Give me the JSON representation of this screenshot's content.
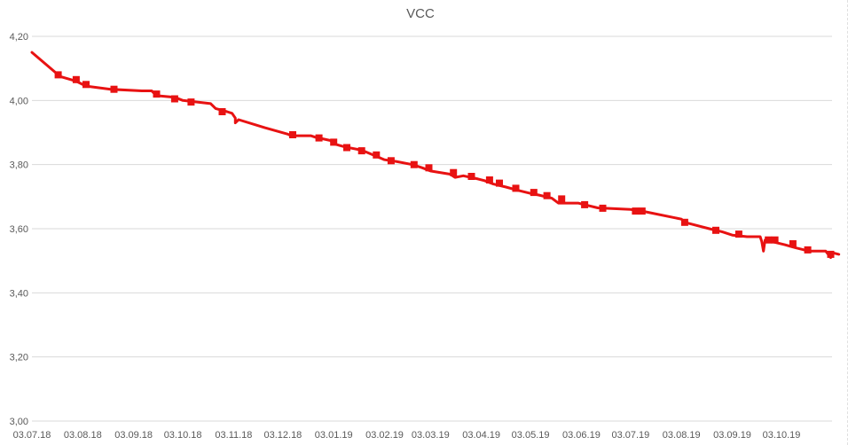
{
  "chart_data": {
    "type": "line",
    "title": "VCC",
    "xlabel": "",
    "ylabel": "",
    "ylim": [
      3.0,
      4.2
    ],
    "yticks": [
      3.0,
      3.2,
      3.4,
      3.6,
      3.8,
      4.0,
      4.2
    ],
    "ytick_labels": [
      "3,00",
      "3,20",
      "3,40",
      "3,60",
      "3,80",
      "4,00",
      "4,20"
    ],
    "xlim": [
      "2018-07-03",
      "2019-11-07"
    ],
    "xticks": [
      "2018-07-03",
      "2018-08-03",
      "2018-09-03",
      "2018-10-03",
      "2018-11-03",
      "2018-12-03",
      "2019-01-03",
      "2019-02-03",
      "2019-03-03",
      "2019-04-03",
      "2019-05-03",
      "2019-06-03",
      "2019-07-03",
      "2019-08-03",
      "2019-09-03",
      "2019-10-03"
    ],
    "xtick_labels": [
      "03.07.18",
      "03.08.18",
      "03.09.18",
      "03.10.18",
      "03.11.18",
      "03.12.18",
      "03.01.19",
      "03.02.19",
      "03.03.19",
      "03.04.19",
      "03.05.19",
      "03.06.19",
      "03.07.19",
      "03.08.19",
      "03.09.19",
      "03.10.19"
    ],
    "grid": true,
    "legend": "none",
    "series": [
      {
        "color": "#e81212",
        "points": [
          [
            "2018-07-03",
            4.15
          ],
          [
            "2018-07-19",
            4.08
          ],
          [
            "2018-07-20",
            4.075
          ],
          [
            "2018-07-30",
            4.06
          ],
          [
            "2018-08-05",
            4.045
          ],
          [
            "2018-08-20",
            4.035
          ],
          [
            "2018-09-08",
            4.03
          ],
          [
            "2018-09-14",
            4.03
          ],
          [
            "2018-09-17",
            4.015
          ],
          [
            "2018-09-28",
            4.01
          ],
          [
            "2018-10-03",
            4.0
          ],
          [
            "2018-10-20",
            3.99
          ],
          [
            "2018-10-23",
            3.975
          ],
          [
            "2018-10-30",
            3.965
          ],
          [
            "2018-11-02",
            3.96
          ],
          [
            "2018-11-04",
            3.945
          ],
          [
            "2018-11-04",
            3.93
          ],
          [
            "2018-11-06",
            3.94
          ],
          [
            "2018-11-22",
            3.915
          ],
          [
            "2018-12-06",
            3.895
          ],
          [
            "2018-12-08",
            3.89
          ],
          [
            "2018-12-20",
            3.89
          ],
          [
            "2018-12-23",
            3.885
          ],
          [
            "2019-01-01",
            3.875
          ],
          [
            "2019-01-03",
            3.865
          ],
          [
            "2019-01-10",
            3.855
          ],
          [
            "2019-01-20",
            3.845
          ],
          [
            "2019-01-27",
            3.83
          ],
          [
            "2019-02-03",
            3.815
          ],
          [
            "2019-02-10",
            3.81
          ],
          [
            "2019-02-20",
            3.8
          ],
          [
            "2019-02-26",
            3.79
          ],
          [
            "2019-03-03",
            3.78
          ],
          [
            "2019-03-15",
            3.77
          ],
          [
            "2019-03-18",
            3.76
          ],
          [
            "2019-03-23",
            3.765
          ],
          [
            "2019-04-01",
            3.755
          ],
          [
            "2019-04-05",
            3.75
          ],
          [
            "2019-04-10",
            3.74
          ],
          [
            "2019-04-18",
            3.73
          ],
          [
            "2019-04-25",
            3.72
          ],
          [
            "2019-05-03",
            3.71
          ],
          [
            "2019-05-08",
            3.705
          ],
          [
            "2019-05-16",
            3.695
          ],
          [
            "2019-05-20",
            3.68
          ],
          [
            "2019-06-01",
            3.68
          ],
          [
            "2019-06-05",
            3.675
          ],
          [
            "2019-06-13",
            3.665
          ],
          [
            "2019-07-03",
            3.66
          ],
          [
            "2019-07-10",
            3.655
          ],
          [
            "2019-08-03",
            3.63
          ],
          [
            "2019-08-05",
            3.62
          ],
          [
            "2019-08-20",
            3.6
          ],
          [
            "2019-08-28",
            3.59
          ],
          [
            "2019-09-03",
            3.58
          ],
          [
            "2019-09-12",
            3.575
          ],
          [
            "2019-09-20",
            3.575
          ],
          [
            "2019-09-21",
            3.56
          ],
          [
            "2019-09-22",
            3.53
          ],
          [
            "2019-09-23",
            3.565
          ],
          [
            "2019-10-05",
            3.55
          ],
          [
            "2019-10-12",
            3.54
          ],
          [
            "2019-10-20",
            3.53
          ],
          [
            "2019-10-30",
            3.53
          ],
          [
            "2019-11-02",
            3.51
          ],
          [
            "2019-11-03",
            3.525
          ],
          [
            "2019-11-07",
            3.52
          ]
        ],
        "markers": [
          [
            "2018-07-19",
            4.08
          ],
          [
            "2018-07-30",
            4.065
          ],
          [
            "2018-08-05",
            4.05
          ],
          [
            "2018-08-22",
            4.035
          ],
          [
            "2018-09-17",
            4.02
          ],
          [
            "2018-09-28",
            4.005
          ],
          [
            "2018-10-08",
            3.995
          ],
          [
            "2018-10-27",
            3.965
          ],
          [
            "2018-12-09",
            3.893
          ],
          [
            "2018-12-25",
            3.883
          ],
          [
            "2019-01-03",
            3.87
          ],
          [
            "2019-01-11",
            3.853
          ],
          [
            "2019-01-20",
            3.843
          ],
          [
            "2019-01-29",
            3.83
          ],
          [
            "2019-02-07",
            3.812
          ],
          [
            "2019-02-21",
            3.8
          ],
          [
            "2019-03-02",
            3.79
          ],
          [
            "2019-03-17",
            3.775
          ],
          [
            "2019-03-28",
            3.763
          ],
          [
            "2019-04-08",
            3.752
          ],
          [
            "2019-04-14",
            3.742
          ],
          [
            "2019-04-24",
            3.726
          ],
          [
            "2019-05-05",
            3.713
          ],
          [
            "2019-05-13",
            3.703
          ],
          [
            "2019-05-22",
            3.693
          ],
          [
            "2019-06-05",
            3.675
          ],
          [
            "2019-06-16",
            3.664
          ],
          [
            "2019-07-06",
            3.655
          ],
          [
            "2019-07-10",
            3.655
          ],
          [
            "2019-08-05",
            3.62
          ],
          [
            "2019-08-24",
            3.595
          ],
          [
            "2019-09-07",
            3.583
          ],
          [
            "2019-09-25",
            3.565
          ],
          [
            "2019-09-29",
            3.565
          ],
          [
            "2019-10-10",
            3.553
          ],
          [
            "2019-10-19",
            3.534
          ],
          [
            "2019-11-02",
            3.52
          ]
        ]
      }
    ]
  }
}
